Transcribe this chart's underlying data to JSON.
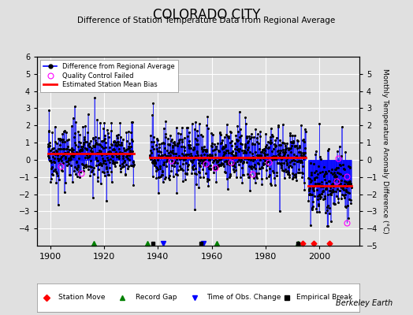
{
  "title": "COLORADO CITY",
  "subtitle": "Difference of Station Temperature Data from Regional Average",
  "ylabel": "Monthly Temperature Anomaly Difference (°C)",
  "xlabel_credit": "Berkeley Earth",
  "ylim": [
    -5,
    6
  ],
  "xlim": [
    1895,
    2015
  ],
  "xticks": [
    1900,
    1920,
    1940,
    1960,
    1980,
    2000
  ],
  "yticks_left": [
    -4,
    -3,
    -2,
    -1,
    0,
    1,
    2,
    3,
    4,
    5,
    6
  ],
  "yticks_right": [
    -5,
    -4,
    -3,
    -2,
    -1,
    0,
    1,
    2,
    3,
    4,
    5
  ],
  "bg_color": "#e0e0e0",
  "plot_bg_color": "#e0e0e0",
  "grid_color": "white",
  "line_color": "blue",
  "marker_color": "black",
  "bias_color": "red",
  "qc_color": "magenta",
  "seed": 42,
  "station_moves": [
    1994,
    1998,
    2004
  ],
  "record_gaps": [
    1916,
    1936,
    1962,
    1992
  ],
  "obs_changes": [
    1942,
    1957
  ],
  "empirical_breaks": [
    1938,
    1956,
    1992
  ],
  "segments": [
    {
      "start": 1899,
      "end": 1931,
      "bias": 0.35
    },
    {
      "start": 1937,
      "end": 1995,
      "bias": 0.15
    },
    {
      "start": 1996,
      "end": 2012,
      "bias": -1.5
    }
  ]
}
